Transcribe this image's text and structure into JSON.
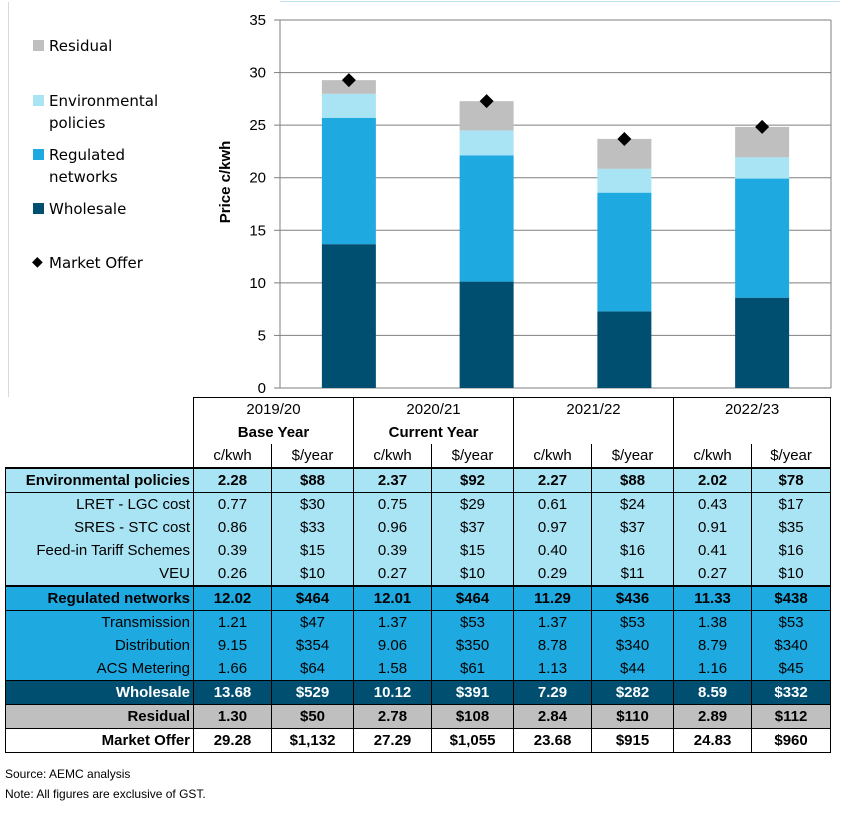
{
  "chart_data": {
    "type": "bar",
    "stacked": true,
    "categories": [
      "2019/20",
      "2020/21",
      "2021/22",
      "2022/23"
    ],
    "series": [
      {
        "name": "Wholesale",
        "color": "#004e70",
        "values": [
          13.68,
          10.12,
          7.29,
          8.59
        ]
      },
      {
        "name": "Regulated networks",
        "color": "#1eaae1",
        "values": [
          12.02,
          12.01,
          11.29,
          11.33
        ]
      },
      {
        "name": "Environmental policies",
        "color": "#a9e4f5",
        "values": [
          2.28,
          2.37,
          2.27,
          2.02
        ]
      },
      {
        "name": "Residual",
        "color": "#bfbfbf",
        "values": [
          1.3,
          2.78,
          2.84,
          2.89
        ]
      }
    ],
    "markers": {
      "name": "Market Offer",
      "values": [
        29.28,
        27.29,
        23.68,
        24.83
      ]
    },
    "ylabel": "Price c/kwh",
    "ylim": [
      0,
      35
    ],
    "yticks": [
      0,
      5,
      10,
      15,
      20,
      25,
      30,
      35
    ],
    "grid": true,
    "legend_position": "left"
  },
  "legend": [
    {
      "label": "Residual",
      "color": "#bfbfbf"
    },
    {
      "label": "Environmental policies",
      "color": "#a9e4f5"
    },
    {
      "label": "Regulated networks",
      "color": "#1eaae1"
    },
    {
      "label": "Wholesale",
      "color": "#004e70"
    },
    {
      "label": "Market Offer",
      "icon": "diamond-icon"
    }
  ],
  "table": {
    "years": [
      "2019/20",
      "2020/21",
      "2021/22",
      "2022/23"
    ],
    "subtitles": [
      "Base Year",
      "Current Year",
      "",
      ""
    ],
    "units": [
      "c/kwh",
      "$/year",
      "c/kwh",
      "$/year",
      "c/kwh",
      "$/year",
      "c/kwh",
      "$/year"
    ],
    "rows": [
      {
        "label": "Environmental policies",
        "style": "env first bold",
        "cells": [
          "2.28",
          "$88",
          "2.37",
          "$92",
          "2.27",
          "$88",
          "2.02",
          "$78"
        ]
      },
      {
        "label": "LRET - LGC cost",
        "style": "env sub",
        "cells": [
          "0.77",
          "$30",
          "0.75",
          "$29",
          "0.61",
          "$24",
          "0.43",
          "$17"
        ]
      },
      {
        "label": "SRES - STC cost",
        "style": "env sub",
        "cells": [
          "0.86",
          "$33",
          "0.96",
          "$37",
          "0.97",
          "$37",
          "0.91",
          "$35"
        ]
      },
      {
        "label": "Feed-in Tariff Schemes",
        "style": "env sub",
        "cells": [
          "0.39",
          "$15",
          "0.39",
          "$15",
          "0.40",
          "$16",
          "0.41",
          "$16"
        ]
      },
      {
        "label": "VEU",
        "style": "env sub",
        "cells": [
          "0.26",
          "$10",
          "0.27",
          "$10",
          "0.29",
          "$11",
          "0.27",
          "$10"
        ]
      },
      {
        "label": "Regulated networks",
        "style": "net first bold",
        "cells": [
          "12.02",
          "$464",
          "12.01",
          "$464",
          "11.29",
          "$436",
          "11.33",
          "$438"
        ]
      },
      {
        "label": "Transmission",
        "style": "net sub",
        "cells": [
          "1.21",
          "$47",
          "1.37",
          "$53",
          "1.37",
          "$53",
          "1.38",
          "$53"
        ]
      },
      {
        "label": "Distribution",
        "style": "net sub",
        "cells": [
          "9.15",
          "$354",
          "9.06",
          "$350",
          "8.78",
          "$340",
          "8.79",
          "$340"
        ]
      },
      {
        "label": "ACS Metering",
        "style": "net sub",
        "cells": [
          "1.66",
          "$64",
          "1.58",
          "$61",
          "1.13",
          "$44",
          "1.16",
          "$45"
        ]
      },
      {
        "label": "Wholesale",
        "style": "whl",
        "cells": [
          "13.68",
          "$529",
          "10.12",
          "$391",
          "7.29",
          "$282",
          "8.59",
          "$332"
        ]
      },
      {
        "label": "Residual",
        "style": "res",
        "cells": [
          "1.30",
          "$50",
          "2.78",
          "$108",
          "2.84",
          "$110",
          "2.89",
          "$112"
        ]
      },
      {
        "label": "Market Offer",
        "style": "mkt",
        "cells": [
          "29.28",
          "$1,132",
          "27.29",
          "$1,055",
          "23.68",
          "$915",
          "24.83",
          "$960"
        ]
      }
    ]
  },
  "footnotes": {
    "source": "Source: AEMC analysis",
    "note": "Note: All figures are exclusive of GST."
  }
}
